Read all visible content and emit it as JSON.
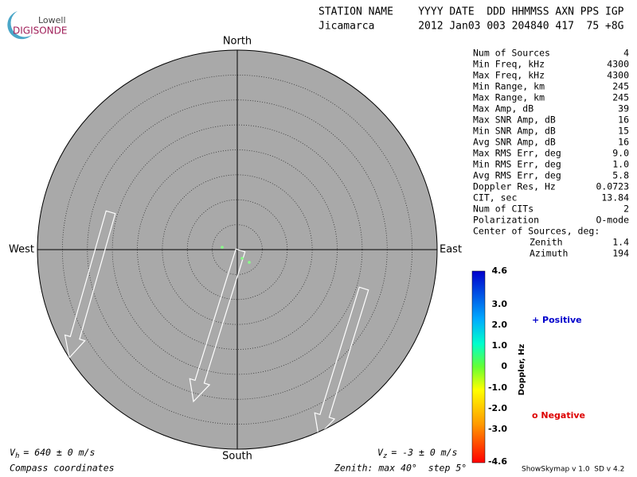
{
  "logo": {
    "top": "Lowell",
    "bottom": "DIGISONDE"
  },
  "header": {
    "line1": "STATION NAME    YYYY DATE  DDD HHMMSS AXN PPS IGP",
    "line2": "Jicamarca       2012 Jan03 003 204840 417  75 +8G"
  },
  "compass": {
    "north": "North",
    "south": "South",
    "east": "East",
    "west": "West"
  },
  "stats": [
    [
      "Num of Sources",
      "4"
    ],
    [
      "Min Freq, kHz",
      "4300"
    ],
    [
      "Max Freq, kHz",
      "4300"
    ],
    [
      "Min Range, km",
      "245"
    ],
    [
      "Max Range, km",
      "245"
    ],
    [
      "Max Amp, dB",
      "39"
    ],
    [
      "Max SNR Amp, dB",
      "16"
    ],
    [
      "Min SNR Amp, dB",
      "15"
    ],
    [
      "Avg SNR Amp, dB",
      "16"
    ],
    [
      "Max RMS Err, deg",
      "9.0"
    ],
    [
      "Min RMS Err, deg",
      "1.0"
    ],
    [
      "Avg RMS Err, deg",
      "5.8"
    ],
    [
      "Doppler Res, Hz",
      "0.0723"
    ],
    [
      "CIT, sec",
      "13.84"
    ],
    [
      "Num of CITs",
      "2"
    ],
    [
      "Polarization",
      "O-mode"
    ]
  ],
  "center": {
    "title": "Center of Sources, deg:",
    "rows": [
      [
        "Zenith",
        "1.4"
      ],
      [
        "Azimuth",
        "194"
      ]
    ]
  },
  "colorbar": {
    "title": "Doppler, Hz",
    "ticks": [
      "4.6",
      "3.0",
      "2.0",
      "1.0",
      "0",
      "-1.0",
      "-2.0",
      "-3.0",
      "-4.6"
    ]
  },
  "legend": {
    "positive": "+ Positive",
    "negative": "o Negative"
  },
  "footer": {
    "vh": [
      "V",
      "h",
      "= 640 ± 0 m/s"
    ],
    "vz": [
      "V",
      "z",
      "= -3 ± 0 m/s"
    ],
    "coords": "Compass coordinates",
    "zenith": "Zenith: max 40°  step 5°",
    "version": "ShowSkymap v 1.0  SD v 4.2"
  }
}
